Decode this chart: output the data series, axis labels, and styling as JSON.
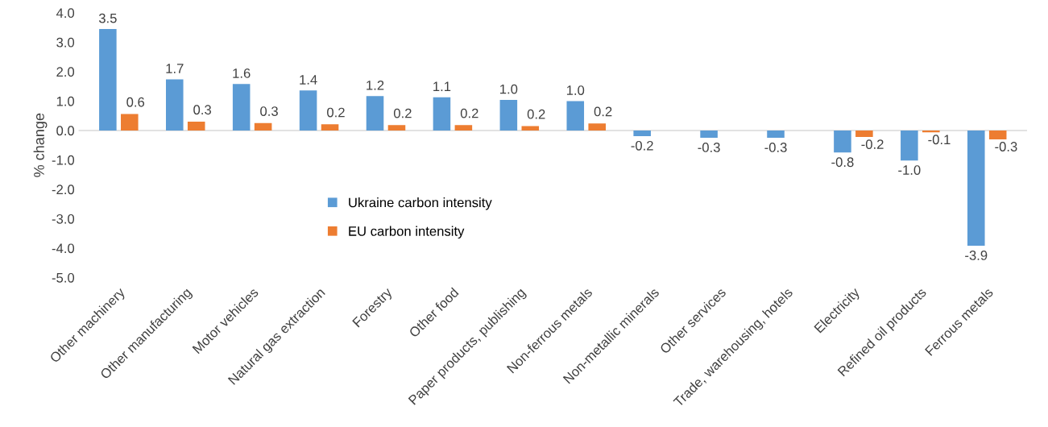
{
  "chart_data": {
    "type": "bar",
    "ylabel": "% change",
    "categories": [
      "Other machinery",
      "Other manufacturing",
      "Motor vehicles",
      "Natural gas extraction",
      "Forestry",
      "Other food",
      "Paper products, publishing",
      "Non-ferrous metals",
      "Non-metallic minerals",
      "Other services",
      "Trade, warehousing, hotels",
      "Electricity",
      "Refined oil products",
      "Ferrous metals"
    ],
    "series": [
      {
        "name": "Ukraine carbon intensity",
        "color": "#5b9bd5",
        "values": [
          3.45,
          1.74,
          1.58,
          1.36,
          1.17,
          1.13,
          1.04,
          1.0,
          -0.19,
          -0.25,
          -0.25,
          -0.75,
          -1.02,
          -3.92
        ],
        "value_labels": [
          "3.5",
          "1.7",
          "1.6",
          "1.4",
          "1.2",
          "1.1",
          "1.0",
          "1.0",
          "-0.2",
          "-0.3",
          "-0.3",
          "-0.8",
          "-1.0",
          "-3.9"
        ]
      },
      {
        "name": "EU carbon intensity",
        "color": "#ed7d31",
        "values": [
          0.56,
          0.3,
          0.25,
          0.21,
          0.18,
          0.18,
          0.15,
          0.24,
          0,
          0,
          0,
          -0.22,
          -0.06,
          -0.3
        ],
        "value_labels": [
          "0.6",
          "0.3",
          "0.3",
          "0.2",
          "0.2",
          "0.2",
          "0.2",
          "0.2",
          null,
          null,
          null,
          "-0.2",
          "-0.1",
          "-0.3"
        ]
      }
    ],
    "ylim": [
      -5.0,
      4.0
    ],
    "yticks": [
      {
        "value": 4,
        "label": "4.0"
      },
      {
        "value": 3,
        "label": "3.0"
      },
      {
        "value": 2,
        "label": "2.0"
      },
      {
        "value": 1,
        "label": "1.0"
      },
      {
        "value": 0,
        "label": "0.0"
      },
      {
        "value": -1,
        "label": "-1.0"
      },
      {
        "value": -2,
        "label": "-2.0"
      },
      {
        "value": -3,
        "label": "-3.0"
      },
      {
        "value": -4,
        "label": "-4.0"
      },
      {
        "value": -5,
        "label": "-5.0"
      }
    ],
    "ref_lines": [
      {
        "axis": "y",
        "value": 0,
        "color": "#d9d9d9",
        "line_style": "solid"
      }
    ],
    "grid": false,
    "legend": "center left"
  }
}
